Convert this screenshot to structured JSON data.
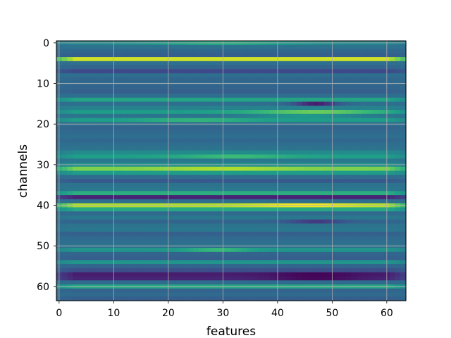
{
  "chart_data": {
    "type": "heatmap",
    "title": "",
    "xlabel": "features",
    "ylabel": "channels",
    "xlim": [
      -0.5,
      63.5
    ],
    "ylim": [
      63.5,
      -0.5
    ],
    "x_ticks": [
      0,
      10,
      20,
      30,
      40,
      50,
      60
    ],
    "y_ticks": [
      0,
      10,
      20,
      30,
      40,
      50,
      60
    ],
    "grid": true,
    "colormap": "viridis",
    "value_range": [
      0,
      1
    ],
    "n_features": 64,
    "row_levels": [
      0.46,
      0.38,
      0.33,
      0.3,
      0.93,
      0.36,
      0.32,
      0.22,
      0.36,
      0.33,
      0.34,
      0.32,
      0.3,
      0.36,
      0.58,
      0.36,
      0.45,
      0.55,
      0.38,
      0.55,
      0.36,
      0.32,
      0.34,
      0.36,
      0.33,
      0.36,
      0.38,
      0.48,
      0.56,
      0.4,
      0.5,
      0.8,
      0.55,
      0.35,
      0.28,
      0.38,
      0.4,
      0.62,
      0.1,
      0.36,
      0.88,
      0.6,
      0.34,
      0.4,
      0.32,
      0.38,
      0.4,
      0.3,
      0.34,
      0.36,
      0.38,
      0.52,
      0.32,
      0.3,
      0.52,
      0.32,
      0.24,
      0.08,
      0.1,
      0.34,
      0.6,
      0.32,
      0.34,
      0.3
    ],
    "feature_modulation": [
      {
        "row": 0,
        "center": 30,
        "width": 14,
        "amp": 0.15
      },
      {
        "row": 15,
        "center": 47,
        "width": 4,
        "amp": -0.28
      },
      {
        "row": 17,
        "center": 47,
        "width": 12,
        "amp": 0.22
      },
      {
        "row": 18,
        "center": 45,
        "width": 10,
        "amp": 0.15
      },
      {
        "row": 19,
        "center": 25,
        "width": 10,
        "amp": 0.1
      },
      {
        "row": 28,
        "center": 32,
        "width": 10,
        "amp": 0.12
      },
      {
        "row": 31,
        "center": 30,
        "width": 12,
        "amp": 0.08
      },
      {
        "row": 40,
        "center": 45,
        "width": 10,
        "amp": 0.1
      },
      {
        "row": 44,
        "center": 47,
        "width": 5,
        "amp": -0.15
      },
      {
        "row": 51,
        "center": 29,
        "width": 6,
        "amp": 0.15
      },
      {
        "row": 57,
        "center": 47,
        "width": 8,
        "amp": -0.07
      },
      {
        "row": 58,
        "center": 47,
        "width": 8,
        "amp": -0.08
      }
    ]
  }
}
